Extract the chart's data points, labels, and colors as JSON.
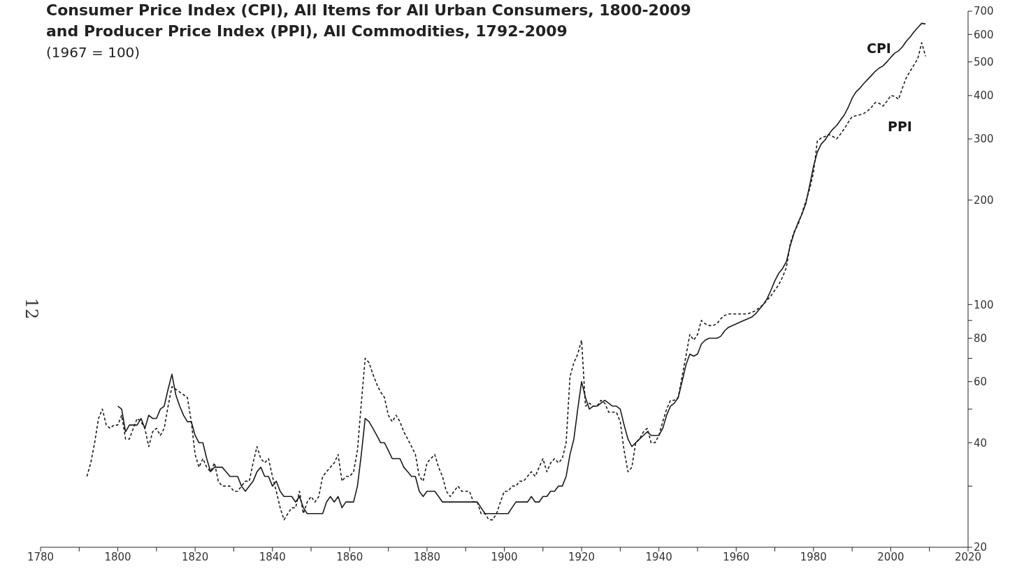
{
  "chart_data": {
    "type": "line",
    "title": "Consumer Price Index (CPI), All Items for All Urban Consumers, 1800-2009\nand Producer Price Index (PPI), All Commodities, 1792-2009",
    "subtitle": "(1967 = 100)",
    "annotations": [
      "12"
    ],
    "log": "y",
    "marker": "none",
    "xlim": [
      1780,
      2020
    ],
    "xticks": [
      1780,
      {
        "value": 1790,
        "label": null
      },
      1800,
      {
        "value": 1810,
        "label": null
      },
      1820,
      {
        "value": 1830,
        "label": null
      },
      1840,
      {
        "value": 1850,
        "label": null
      },
      1860,
      {
        "value": 1870,
        "label": null
      },
      1880,
      {
        "value": 1890,
        "label": null
      },
      1900,
      {
        "value": 1910,
        "label": null
      },
      1920,
      {
        "value": 1930,
        "label": null
      },
      1940,
      {
        "value": 1950,
        "label": null
      },
      1960,
      {
        "value": 1970,
        "label": null
      },
      1980,
      {
        "value": 1990,
        "label": null
      },
      2000,
      {
        "value": 2010,
        "label": null
      },
      2020
    ],
    "ylim": [
      20,
      700
    ],
    "yticks": [
      20,
      {
        "value": 30,
        "label": null
      },
      40,
      {
        "value": 50,
        "label": null
      },
      60,
      {
        "value": 70,
        "label": null
      },
      80,
      {
        "value": 90,
        "label": null
      },
      100,
      200,
      300,
      400,
      500,
      600,
      700
    ],
    "series": [
      {
        "name": "CPI",
        "color": "#1a1a1a",
        "line_style": "solid",
        "x": [
          1800,
          1801,
          1802,
          1803,
          1804,
          1805,
          1806,
          1807,
          1808,
          1809,
          1810,
          1811,
          1812,
          1813,
          1814,
          1815,
          1816,
          1817,
          1818,
          1819,
          1820,
          1821,
          1822,
          1823,
          1824,
          1825,
          1826,
          1827,
          1828,
          1829,
          1830,
          1831,
          1832,
          1833,
          1834,
          1835,
          1836,
          1837,
          1838,
          1839,
          1840,
          1841,
          1842,
          1843,
          1844,
          1845,
          1846,
          1847,
          1848,
          1849,
          1850,
          1851,
          1852,
          1853,
          1854,
          1855,
          1856,
          1857,
          1858,
          1859,
          1860,
          1861,
          1862,
          1863,
          1864,
          1865,
          1866,
          1867,
          1868,
          1869,
          1870,
          1871,
          1872,
          1873,
          1874,
          1875,
          1876,
          1877,
          1878,
          1879,
          1880,
          1881,
          1882,
          1883,
          1884,
          1885,
          1886,
          1887,
          1888,
          1889,
          1890,
          1891,
          1892,
          1893,
          1894,
          1895,
          1896,
          1897,
          1898,
          1899,
          1900,
          1901,
          1902,
          1903,
          1904,
          1905,
          1906,
          1907,
          1908,
          1909,
          1910,
          1911,
          1912,
          1913,
          1914,
          1915,
          1916,
          1917,
          1918,
          1919,
          1920,
          1921,
          1922,
          1923,
          1924,
          1925,
          1926,
          1927,
          1928,
          1929,
          1930,
          1931,
          1932,
          1933,
          1934,
          1935,
          1936,
          1937,
          1938,
          1939,
          1940,
          1941,
          1942,
          1943,
          1944,
          1945,
          1946,
          1947,
          1948,
          1949,
          1950,
          1951,
          1952,
          1953,
          1954,
          1955,
          1956,
          1957,
          1958,
          1959,
          1960,
          1961,
          1962,
          1963,
          1964,
          1965,
          1966,
          1967,
          1968,
          1969,
          1970,
          1971,
          1972,
          1973,
          1974,
          1975,
          1976,
          1977,
          1978,
          1979,
          1980,
          1981,
          1982,
          1983,
          1984,
          1985,
          1986,
          1987,
          1988,
          1989,
          1990,
          1991,
          1992,
          1993,
          1994,
          1995,
          1996,
          1997,
          1998,
          1999,
          2000,
          2001,
          2002,
          2003,
          2004,
          2005,
          2006,
          2007,
          2008,
          2009
        ],
        "values": [
          51,
          50,
          43,
          45,
          45,
          45,
          47,
          44,
          48,
          47,
          47,
          50,
          51,
          57,
          63,
          55,
          51,
          48,
          46,
          46,
          42,
          40,
          40,
          36,
          33,
          34,
          34,
          34,
          33,
          32,
          32,
          32,
          30,
          29,
          30,
          31,
          33,
          34,
          32,
          32,
          30,
          31,
          29,
          28,
          28,
          28,
          27,
          28,
          26,
          25,
          25,
          25,
          25,
          25,
          27,
          28,
          27,
          28,
          26,
          27,
          27,
          27,
          30,
          37,
          47,
          46,
          44,
          42,
          40,
          40,
          38,
          36,
          36,
          36,
          34,
          33,
          32,
          32,
          29,
          28,
          29,
          29,
          29,
          28,
          27,
          27,
          27,
          27,
          27,
          27,
          27,
          27,
          27,
          27,
          26,
          25,
          25,
          25,
          25,
          25,
          25,
          25,
          26,
          27,
          27,
          27,
          27,
          28,
          27,
          27,
          28,
          28,
          29,
          29,
          30,
          30,
          32,
          37,
          41,
          50,
          60,
          54,
          50,
          51,
          51,
          52,
          53,
          52,
          51,
          51,
          50,
          45,
          41,
          39,
          40,
          41,
          42,
          43,
          42,
          42,
          42,
          44,
          48,
          51,
          52,
          54,
          60,
          67,
          72,
          71,
          72,
          77,
          79,
          80,
          80,
          80,
          81,
          84,
          86,
          87,
          88,
          89,
          90,
          91,
          92,
          94,
          97,
          100,
          104,
          110,
          117,
          123,
          127,
          133,
          148,
          161,
          172,
          182,
          195,
          220,
          250,
          275,
          290,
          298,
          310,
          320,
          328,
          340,
          352,
          370,
          393,
          410,
          420,
          433,
          445,
          457,
          470,
          480,
          487,
          500,
          515,
          530,
          538,
          552,
          573,
          590,
          610,
          628,
          646,
          643
        ]
      },
      {
        "name": "PPI",
        "color": "#1a1a1a",
        "line_style": "dashed",
        "x": [
          1792,
          1793,
          1794,
          1795,
          1796,
          1797,
          1798,
          1799,
          1800,
          1801,
          1802,
          1803,
          1804,
          1805,
          1806,
          1807,
          1808,
          1809,
          1810,
          1811,
          1812,
          1813,
          1814,
          1815,
          1816,
          1817,
          1818,
          1819,
          1820,
          1821,
          1822,
          1823,
          1824,
          1825,
          1826,
          1827,
          1828,
          1829,
          1830,
          1831,
          1832,
          1833,
          1834,
          1835,
          1836,
          1837,
          1838,
          1839,
          1840,
          1841,
          1842,
          1843,
          1844,
          1845,
          1846,
          1847,
          1848,
          1849,
          1850,
          1851,
          1852,
          1853,
          1854,
          1855,
          1856,
          1857,
          1858,
          1859,
          1860,
          1861,
          1862,
          1863,
          1864,
          1865,
          1866,
          1867,
          1868,
          1869,
          1870,
          1871,
          1872,
          1873,
          1874,
          1875,
          1876,
          1877,
          1878,
          1879,
          1880,
          1881,
          1882,
          1883,
          1884,
          1885,
          1886,
          1887,
          1888,
          1889,
          1890,
          1891,
          1892,
          1893,
          1894,
          1895,
          1896,
          1897,
          1898,
          1899,
          1900,
          1901,
          1902,
          1903,
          1904,
          1905,
          1906,
          1907,
          1908,
          1909,
          1910,
          1911,
          1912,
          1913,
          1914,
          1915,
          1916,
          1917,
          1918,
          1919,
          1920,
          1921,
          1922,
          1923,
          1924,
          1925,
          1926,
          1927,
          1928,
          1929,
          1930,
          1931,
          1932,
          1933,
          1934,
          1935,
          1936,
          1937,
          1938,
          1939,
          1940,
          1941,
          1942,
          1943,
          1944,
          1945,
          1946,
          1947,
          1948,
          1949,
          1950,
          1951,
          1952,
          1953,
          1954,
          1955,
          1956,
          1957,
          1958,
          1959,
          1960,
          1961,
          1962,
          1963,
          1964,
          1965,
          1966,
          1967,
          1968,
          1969,
          1970,
          1971,
          1972,
          1973,
          1974,
          1975,
          1976,
          1977,
          1978,
          1979,
          1980,
          1981,
          1982,
          1983,
          1984,
          1985,
          1986,
          1987,
          1988,
          1989,
          1990,
          1991,
          1992,
          1993,
          1994,
          1995,
          1996,
          1997,
          1998,
          1999,
          2000,
          2001,
          2002,
          2003,
          2004,
          2005,
          2006,
          2007,
          2008,
          2009
        ],
        "values": [
          32,
          35,
          40,
          47,
          50,
          45,
          44,
          45,
          45,
          48,
          41,
          41,
          44,
          47,
          46,
          44,
          39,
          43,
          44,
          42,
          44,
          51,
          58,
          57,
          56,
          55,
          54,
          46,
          37,
          34,
          36,
          34,
          33,
          35,
          31,
          30,
          30,
          30,
          29,
          29,
          30,
          31,
          31,
          35,
          39,
          36,
          35,
          36,
          32,
          29,
          26,
          24,
          25,
          26,
          26,
          29,
          25,
          27,
          28,
          27,
          28,
          32,
          33,
          34,
          35,
          37,
          31,
          32,
          32,
          33,
          38,
          52,
          70,
          68,
          63,
          59,
          56,
          54,
          48,
          46,
          48,
          46,
          43,
          41,
          39,
          37,
          32,
          31,
          35,
          36,
          37,
          34,
          32,
          29,
          28,
          29,
          30,
          29,
          29,
          29,
          27,
          27,
          25,
          25,
          24,
          24,
          25,
          27,
          29,
          29,
          30,
          30,
          31,
          31,
          32,
          33,
          32,
          34,
          36,
          33,
          35,
          36,
          35,
          36,
          40,
          62,
          68,
          72,
          79,
          51,
          52,
          51,
          51,
          53,
          52,
          49,
          49,
          49,
          46,
          38,
          33,
          34,
          40,
          41,
          43,
          44,
          40,
          40,
          42,
          46,
          50,
          53,
          53,
          54,
          62,
          71,
          82,
          79,
          82,
          90,
          88,
          87,
          87,
          88,
          91,
          93,
          94,
          94,
          94,
          94,
          94,
          94,
          95,
          96,
          98,
          100,
          103,
          106,
          110,
          114,
          120,
          128,
          150,
          162,
          170,
          183,
          198,
          215,
          240,
          296,
          302,
          305,
          309,
          305,
          300,
          310,
          321,
          335,
          348,
          350,
          352,
          355,
          361,
          370,
          382,
          380,
          373,
          385,
          400,
          398,
          390,
          420,
          450,
          470,
          490,
          511,
          568,
          519
        ]
      }
    ]
  }
}
